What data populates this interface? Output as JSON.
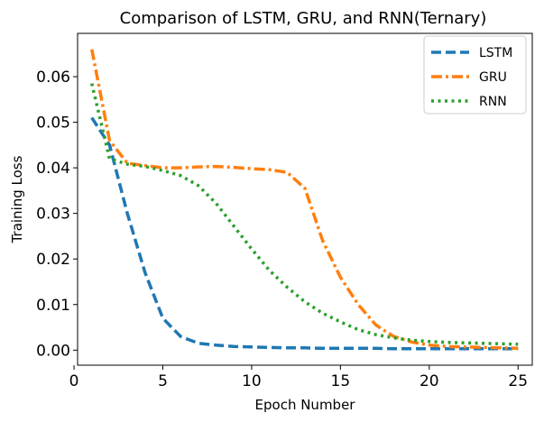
{
  "chart_data": {
    "type": "line",
    "title": "Comparison of LSTM, GRU, and RNN(Ternary)",
    "xlabel": "Epoch Number",
    "ylabel": "Training Loss",
    "xlim": [
      0.2,
      25.8
    ],
    "ylim": [
      -0.0033,
      0.0695
    ],
    "xticks": [
      0,
      5,
      10,
      15,
      20,
      25
    ],
    "yticks": [
      0.0,
      0.01,
      0.02,
      0.03,
      0.04,
      0.05,
      0.06
    ],
    "ytick_labels": [
      "0.00",
      "0.01",
      "0.02",
      "0.03",
      "0.04",
      "0.05",
      "0.06"
    ],
    "grid": false,
    "legend_position": "top-right",
    "x": [
      1,
      2,
      3,
      4,
      5,
      6,
      7,
      8,
      9,
      10,
      11,
      12,
      13,
      14,
      15,
      16,
      17,
      18,
      19,
      20,
      21,
      22,
      23,
      24,
      25
    ],
    "series": [
      {
        "name": "LSTM",
        "color": "#1f77b4",
        "style": "dashed",
        "values": [
          0.051,
          0.045,
          0.03,
          0.017,
          0.007,
          0.003,
          0.0015,
          0.0011,
          0.0008,
          0.0007,
          0.0006,
          0.0005,
          0.0005,
          0.0004,
          0.0004,
          0.0004,
          0.0004,
          0.0003,
          0.0003,
          0.0003,
          0.0003,
          0.0003,
          0.0003,
          0.0003,
          0.0003
        ]
      },
      {
        "name": "GRU",
        "color": "#ff7f0e",
        "style": "dashdot",
        "values": [
          0.066,
          0.046,
          0.041,
          0.0405,
          0.04,
          0.04,
          0.0402,
          0.0403,
          0.0401,
          0.0398,
          0.0396,
          0.039,
          0.0355,
          0.024,
          0.016,
          0.01,
          0.0055,
          0.003,
          0.0018,
          0.0011,
          0.0008,
          0.0007,
          0.0006,
          0.0005,
          0.0004
        ]
      },
      {
        "name": "RNN",
        "color": "#2ca02c",
        "style": "dotted",
        "values": [
          0.0585,
          0.042,
          0.0408,
          0.0403,
          0.0394,
          0.0383,
          0.0361,
          0.0322,
          0.0272,
          0.0222,
          0.0175,
          0.0138,
          0.0106,
          0.0081,
          0.0062,
          0.0045,
          0.0034,
          0.0027,
          0.0022,
          0.0019,
          0.0017,
          0.0016,
          0.0015,
          0.0014,
          0.0013
        ]
      }
    ]
  }
}
